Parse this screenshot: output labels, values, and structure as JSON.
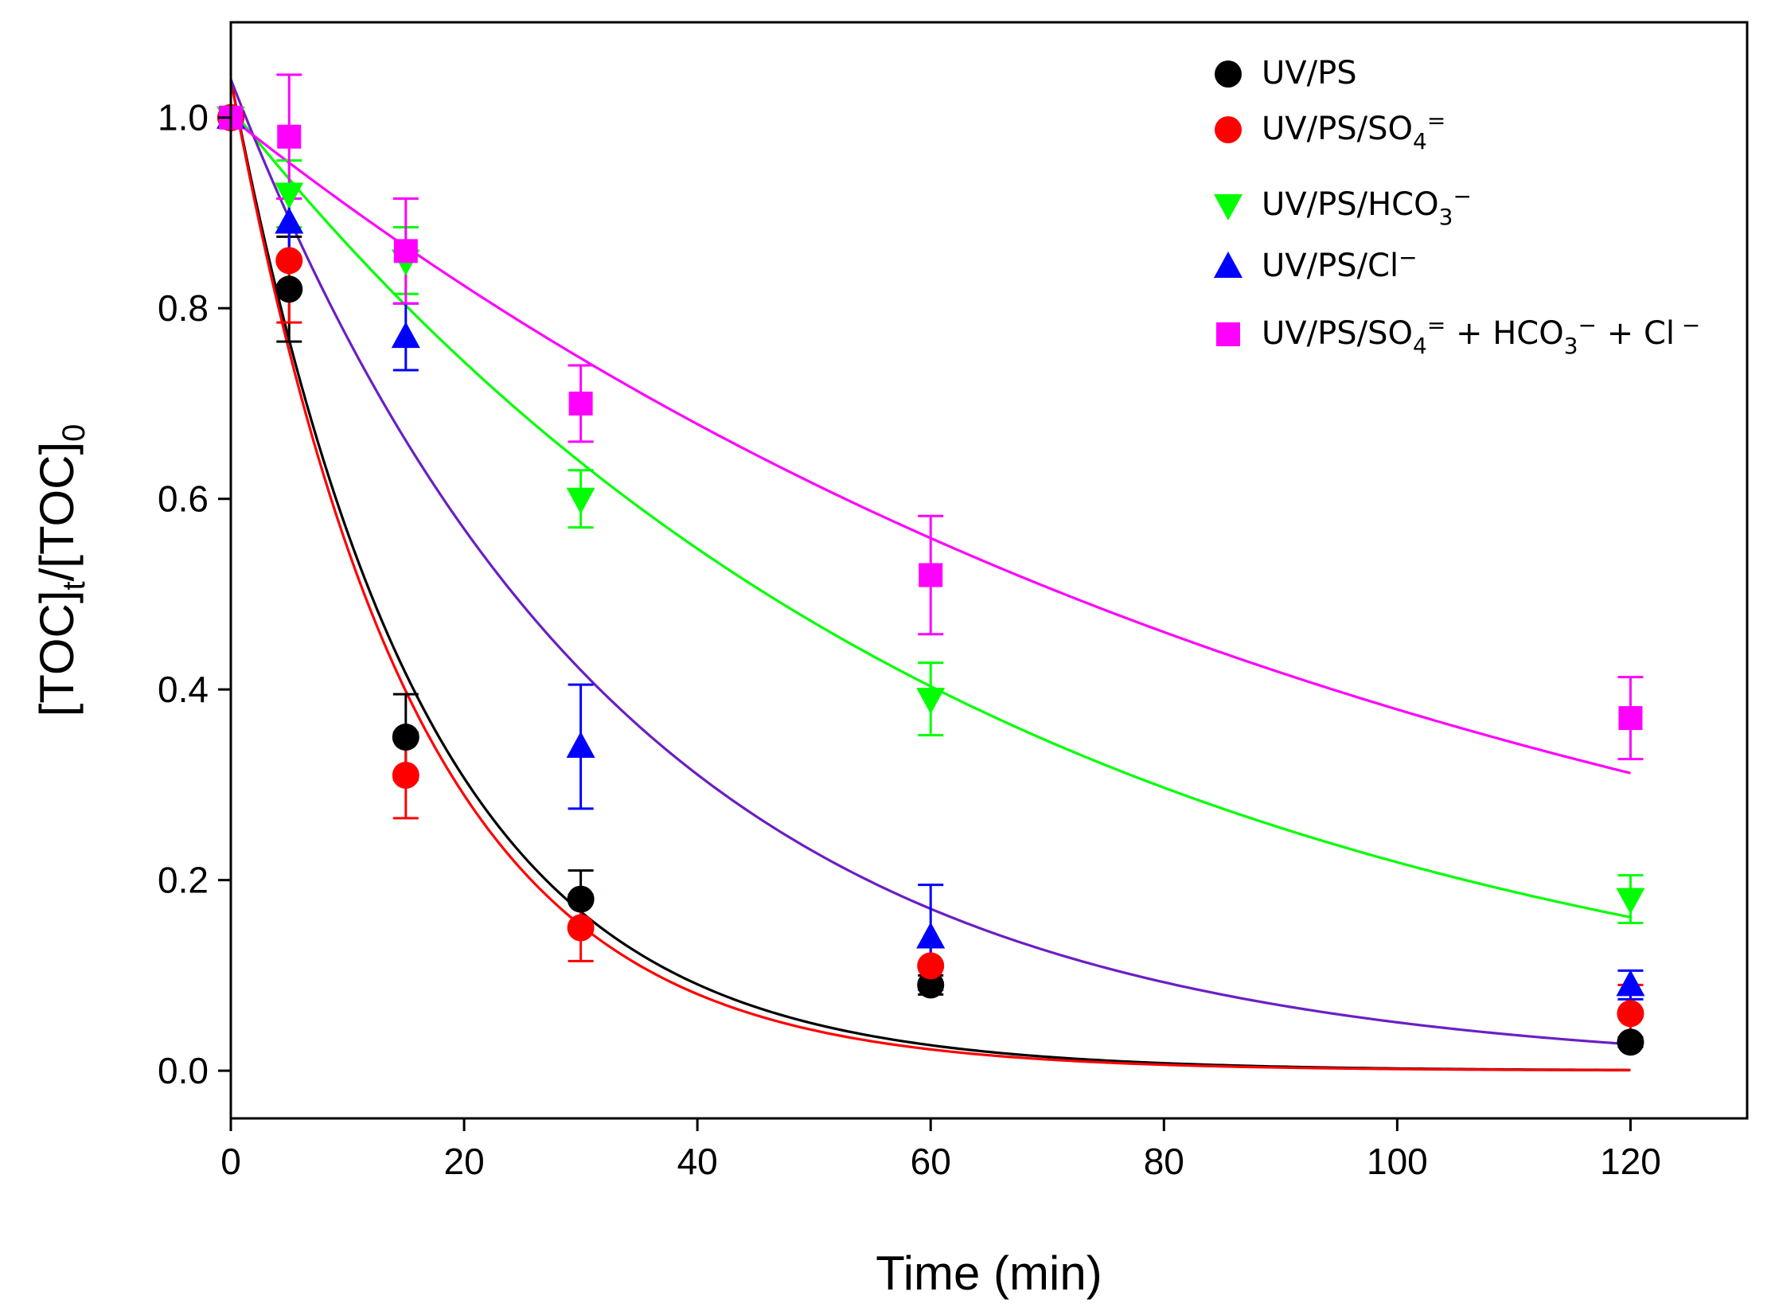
{
  "chart_data": {
    "type": "scatter",
    "title": "",
    "xlabel": "Time (min)",
    "ylabel": {
      "main": "[TOC]",
      "sub1": "t",
      "sep": "/[TOC]",
      "sub2": "0"
    },
    "xlim": [
      0,
      130
    ],
    "ylim": [
      -0.05,
      1.1
    ],
    "xticks": [
      0,
      20,
      40,
      60,
      80,
      100,
      120
    ],
    "yticks": [
      0.0,
      0.2,
      0.4,
      0.6,
      0.8,
      1.0
    ],
    "xtick_labels": [
      "0",
      "20",
      "40",
      "60",
      "80",
      "100",
      "120"
    ],
    "ytick_labels": [
      "0.0",
      "0.2",
      "0.4",
      "0.6",
      "0.8",
      "1.0"
    ],
    "grid": false,
    "legend_position": "top-right",
    "x": [
      0,
      5,
      15,
      30,
      60,
      120
    ],
    "series": [
      {
        "name": "UV/PS",
        "legend_parts": [
          {
            "t": "UV/PS"
          }
        ],
        "marker": "circle",
        "color": "#000000",
        "fit_color": "#000000",
        "values": [
          1.0,
          0.82,
          0.35,
          0.18,
          0.09,
          0.03
        ],
        "errors": [
          0.0,
          0.055,
          0.045,
          0.03,
          0.01,
          0.005
        ],
        "fit": {
          "y0": 1.04,
          "k": 0.061
        }
      },
      {
        "name": "UV/PS/SO4=",
        "legend_parts": [
          {
            "t": "UV/PS/SO"
          },
          {
            "t": "4",
            "s": "sub"
          },
          {
            "t": "=",
            "s": "sup"
          }
        ],
        "marker": "circle",
        "color": "#ff0000",
        "fit_color": "#ff0000",
        "values": [
          1.0,
          0.85,
          0.31,
          0.15,
          0.11,
          0.06
        ],
        "errors": [
          0.0,
          0.065,
          0.045,
          0.035,
          0.02,
          0.03
        ],
        "fit": {
          "y0": 1.04,
          "k": 0.064
        }
      },
      {
        "name": "UV/PS/HCO3−",
        "legend_parts": [
          {
            "t": "UV/PS/HCO"
          },
          {
            "t": "3",
            "s": "sub"
          },
          {
            "t": "−",
            "s": "sup"
          }
        ],
        "marker": "triangle-down",
        "color": "#00ff00",
        "fit_color": "#00ff00",
        "values": [
          1.0,
          0.92,
          0.85,
          0.6,
          0.39,
          0.18
        ],
        "errors": [
          0.0,
          0.035,
          0.035,
          0.03,
          0.038,
          0.025
        ],
        "fit": {
          "y0": 1.01,
          "k": 0.0153
        }
      },
      {
        "name": "UV/PS/Cl−",
        "legend_parts": [
          {
            "t": "UV/PS/Cl"
          },
          {
            "t": "−",
            "s": "sup"
          }
        ],
        "marker": "triangle-up",
        "color": "#0000ff",
        "fit_color": "#6a1fc4",
        "values": [
          1.0,
          0.89,
          0.77,
          0.34,
          0.14,
          0.09
        ],
        "errors": [
          0.0,
          0.04,
          0.035,
          0.065,
          0.055,
          0.015
        ],
        "fit": {
          "y0": 1.04,
          "k": 0.0302
        }
      },
      {
        "name": "UV/PS/SO4= + HCO3− + Cl−",
        "legend_parts": [
          {
            "t": "UV/PS/SO"
          },
          {
            "t": "4",
            "s": "sub"
          },
          {
            "t": "=",
            "s": "sup"
          },
          {
            "t": " + HCO"
          },
          {
            "t": "3",
            "s": "sub"
          },
          {
            "t": "−",
            "s": "sup"
          },
          {
            "t": " + Cl"
          },
          {
            "t": " −",
            "s": "sup"
          }
        ],
        "marker": "square",
        "color": "#ff00ff",
        "fit_color": "#ff00ff",
        "values": [
          1.0,
          0.98,
          0.86,
          0.7,
          0.52,
          0.37
        ],
        "errors": [
          0.0,
          0.065,
          0.055,
          0.04,
          0.062,
          0.043
        ],
        "fit": {
          "y0": 1.0,
          "k": 0.0097
        }
      }
    ]
  }
}
